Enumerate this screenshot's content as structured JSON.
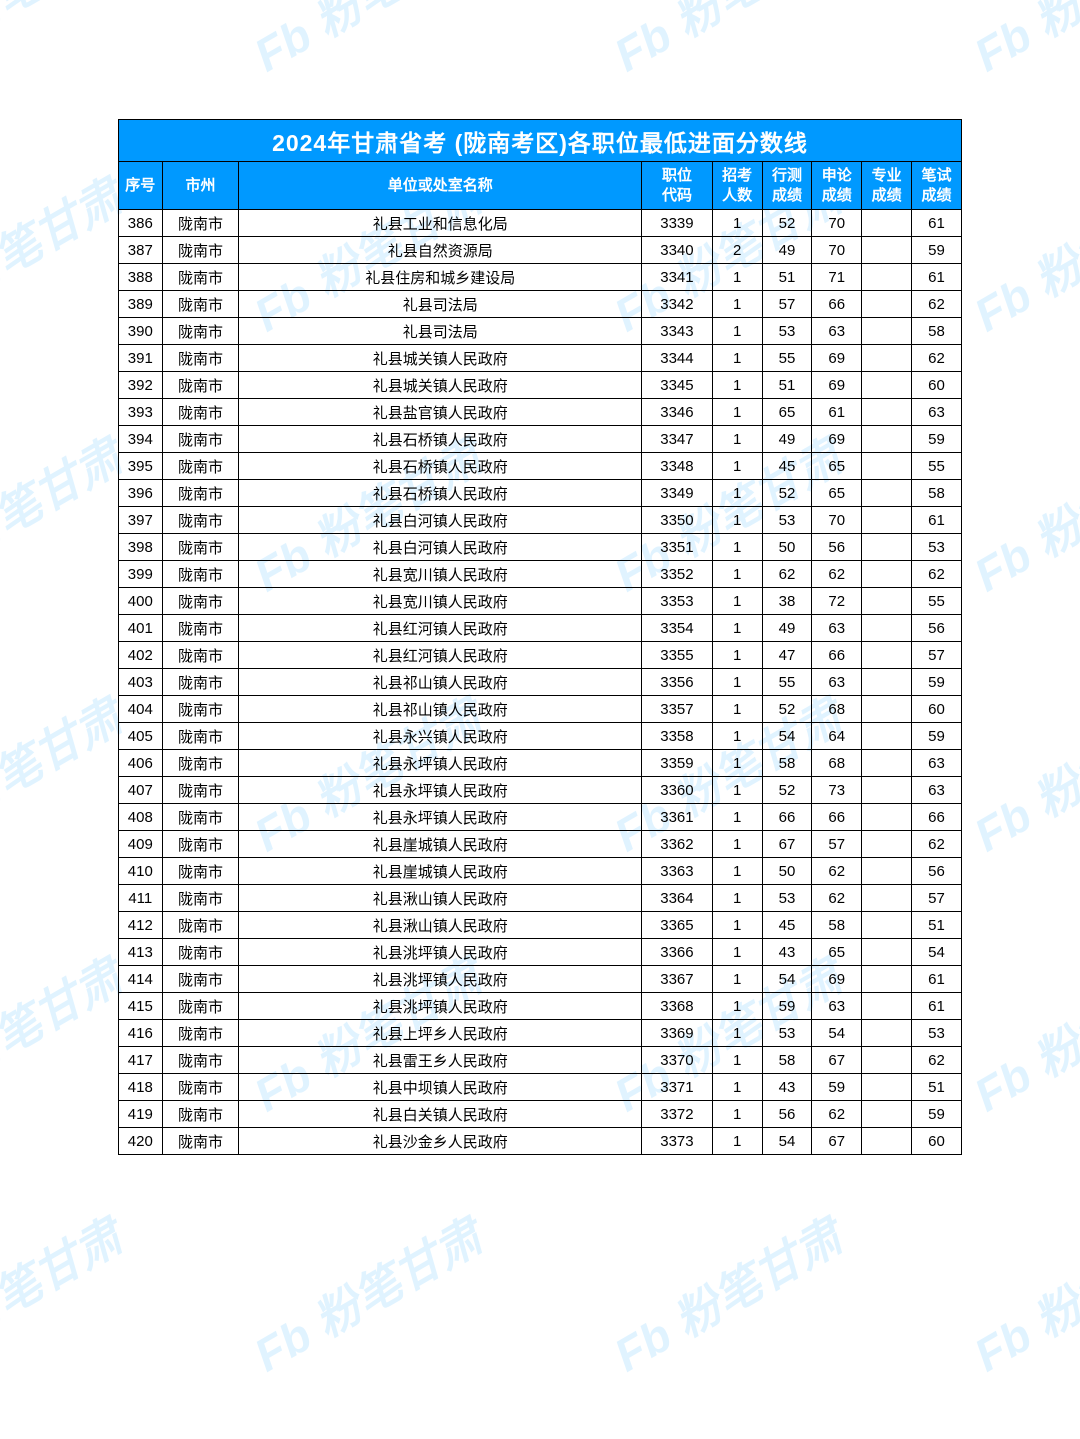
{
  "title": "2024年甘肃省考 (陇南考区)各职位最低进面分数线",
  "watermark_text": "粉笔甘肃",
  "colors": {
    "header_bg": "#0099ff",
    "header_fg": "#ffffff",
    "border": "#000000",
    "body_fg": "#000000",
    "watermark": "rgba(0,153,255,0.12)",
    "page_bg": "#ffffff"
  },
  "columns": [
    {
      "key": "seq",
      "label": "序号"
    },
    {
      "key": "city",
      "label": "市州"
    },
    {
      "key": "unit",
      "label": "单位或处室名称"
    },
    {
      "key": "code",
      "label": "职位\n代码"
    },
    {
      "key": "num",
      "label": "招考\n人数"
    },
    {
      "key": "s1",
      "label": "行测\n成绩"
    },
    {
      "key": "s2",
      "label": "申论\n成绩"
    },
    {
      "key": "s3",
      "label": "专业\n成绩"
    },
    {
      "key": "s4",
      "label": "笔试\n成绩"
    }
  ],
  "rows": [
    {
      "seq": 386,
      "city": "陇南市",
      "unit": "礼县工业和信息化局",
      "code": 3339,
      "num": 1,
      "s1": 52,
      "s2": 70,
      "s3": "",
      "s4": 61
    },
    {
      "seq": 387,
      "city": "陇南市",
      "unit": "礼县自然资源局",
      "code": 3340,
      "num": 2,
      "s1": 49,
      "s2": 70,
      "s3": "",
      "s4": 59
    },
    {
      "seq": 388,
      "city": "陇南市",
      "unit": "礼县住房和城乡建设局",
      "code": 3341,
      "num": 1,
      "s1": 51,
      "s2": 71,
      "s3": "",
      "s4": 61
    },
    {
      "seq": 389,
      "city": "陇南市",
      "unit": "礼县司法局",
      "code": 3342,
      "num": 1,
      "s1": 57,
      "s2": 66,
      "s3": "",
      "s4": 62
    },
    {
      "seq": 390,
      "city": "陇南市",
      "unit": "礼县司法局",
      "code": 3343,
      "num": 1,
      "s1": 53,
      "s2": 63,
      "s3": "",
      "s4": 58
    },
    {
      "seq": 391,
      "city": "陇南市",
      "unit": "礼县城关镇人民政府",
      "code": 3344,
      "num": 1,
      "s1": 55,
      "s2": 69,
      "s3": "",
      "s4": 62
    },
    {
      "seq": 392,
      "city": "陇南市",
      "unit": "礼县城关镇人民政府",
      "code": 3345,
      "num": 1,
      "s1": 51,
      "s2": 69,
      "s3": "",
      "s4": 60
    },
    {
      "seq": 393,
      "city": "陇南市",
      "unit": "礼县盐官镇人民政府",
      "code": 3346,
      "num": 1,
      "s1": 65,
      "s2": 61,
      "s3": "",
      "s4": 63
    },
    {
      "seq": 394,
      "city": "陇南市",
      "unit": "礼县石桥镇人民政府",
      "code": 3347,
      "num": 1,
      "s1": 49,
      "s2": 69,
      "s3": "",
      "s4": 59
    },
    {
      "seq": 395,
      "city": "陇南市",
      "unit": "礼县石桥镇人民政府",
      "code": 3348,
      "num": 1,
      "s1": 45,
      "s2": 65,
      "s3": "",
      "s4": 55
    },
    {
      "seq": 396,
      "city": "陇南市",
      "unit": "礼县石桥镇人民政府",
      "code": 3349,
      "num": 1,
      "s1": 52,
      "s2": 65,
      "s3": "",
      "s4": 58
    },
    {
      "seq": 397,
      "city": "陇南市",
      "unit": "礼县白河镇人民政府",
      "code": 3350,
      "num": 1,
      "s1": 53,
      "s2": 70,
      "s3": "",
      "s4": 61
    },
    {
      "seq": 398,
      "city": "陇南市",
      "unit": "礼县白河镇人民政府",
      "code": 3351,
      "num": 1,
      "s1": 50,
      "s2": 56,
      "s3": "",
      "s4": 53
    },
    {
      "seq": 399,
      "city": "陇南市",
      "unit": "礼县宽川镇人民政府",
      "code": 3352,
      "num": 1,
      "s1": 62,
      "s2": 62,
      "s3": "",
      "s4": 62
    },
    {
      "seq": 400,
      "city": "陇南市",
      "unit": "礼县宽川镇人民政府",
      "code": 3353,
      "num": 1,
      "s1": 38,
      "s2": 72,
      "s3": "",
      "s4": 55
    },
    {
      "seq": 401,
      "city": "陇南市",
      "unit": "礼县红河镇人民政府",
      "code": 3354,
      "num": 1,
      "s1": 49,
      "s2": 63,
      "s3": "",
      "s4": 56
    },
    {
      "seq": 402,
      "city": "陇南市",
      "unit": "礼县红河镇人民政府",
      "code": 3355,
      "num": 1,
      "s1": 47,
      "s2": 66,
      "s3": "",
      "s4": 57
    },
    {
      "seq": 403,
      "city": "陇南市",
      "unit": "礼县祁山镇人民政府",
      "code": 3356,
      "num": 1,
      "s1": 55,
      "s2": 63,
      "s3": "",
      "s4": 59
    },
    {
      "seq": 404,
      "city": "陇南市",
      "unit": "礼县祁山镇人民政府",
      "code": 3357,
      "num": 1,
      "s1": 52,
      "s2": 68,
      "s3": "",
      "s4": 60
    },
    {
      "seq": 405,
      "city": "陇南市",
      "unit": "礼县永兴镇人民政府",
      "code": 3358,
      "num": 1,
      "s1": 54,
      "s2": 64,
      "s3": "",
      "s4": 59
    },
    {
      "seq": 406,
      "city": "陇南市",
      "unit": "礼县永坪镇人民政府",
      "code": 3359,
      "num": 1,
      "s1": 58,
      "s2": 68,
      "s3": "",
      "s4": 63
    },
    {
      "seq": 407,
      "city": "陇南市",
      "unit": "礼县永坪镇人民政府",
      "code": 3360,
      "num": 1,
      "s1": 52,
      "s2": 73,
      "s3": "",
      "s4": 63
    },
    {
      "seq": 408,
      "city": "陇南市",
      "unit": "礼县永坪镇人民政府",
      "code": 3361,
      "num": 1,
      "s1": 66,
      "s2": 66,
      "s3": "",
      "s4": 66
    },
    {
      "seq": 409,
      "city": "陇南市",
      "unit": "礼县崖城镇人民政府",
      "code": 3362,
      "num": 1,
      "s1": 67,
      "s2": 57,
      "s3": "",
      "s4": 62
    },
    {
      "seq": 410,
      "city": "陇南市",
      "unit": "礼县崖城镇人民政府",
      "code": 3363,
      "num": 1,
      "s1": 50,
      "s2": 62,
      "s3": "",
      "s4": 56
    },
    {
      "seq": 411,
      "city": "陇南市",
      "unit": "礼县湫山镇人民政府",
      "code": 3364,
      "num": 1,
      "s1": 53,
      "s2": 62,
      "s3": "",
      "s4": 57
    },
    {
      "seq": 412,
      "city": "陇南市",
      "unit": "礼县湫山镇人民政府",
      "code": 3365,
      "num": 1,
      "s1": 45,
      "s2": 58,
      "s3": "",
      "s4": 51
    },
    {
      "seq": 413,
      "city": "陇南市",
      "unit": "礼县洮坪镇人民政府",
      "code": 3366,
      "num": 1,
      "s1": 43,
      "s2": 65,
      "s3": "",
      "s4": 54
    },
    {
      "seq": 414,
      "city": "陇南市",
      "unit": "礼县洮坪镇人民政府",
      "code": 3367,
      "num": 1,
      "s1": 54,
      "s2": 69,
      "s3": "",
      "s4": 61
    },
    {
      "seq": 415,
      "city": "陇南市",
      "unit": "礼县洮坪镇人民政府",
      "code": 3368,
      "num": 1,
      "s1": 59,
      "s2": 63,
      "s3": "",
      "s4": 61
    },
    {
      "seq": 416,
      "city": "陇南市",
      "unit": "礼县上坪乡人民政府",
      "code": 3369,
      "num": 1,
      "s1": 53,
      "s2": 54,
      "s3": "",
      "s4": 53
    },
    {
      "seq": 417,
      "city": "陇南市",
      "unit": "礼县雷王乡人民政府",
      "code": 3370,
      "num": 1,
      "s1": 58,
      "s2": 67,
      "s3": "",
      "s4": 62
    },
    {
      "seq": 418,
      "city": "陇南市",
      "unit": "礼县中坝镇人民政府",
      "code": 3371,
      "num": 1,
      "s1": 43,
      "s2": 59,
      "s3": "",
      "s4": 51
    },
    {
      "seq": 419,
      "city": "陇南市",
      "unit": "礼县白关镇人民政府",
      "code": 3372,
      "num": 1,
      "s1": 56,
      "s2": 62,
      "s3": "",
      "s4": 59
    },
    {
      "seq": 420,
      "city": "陇南市",
      "unit": "礼县沙金乡人民政府",
      "code": 3373,
      "num": 1,
      "s1": 54,
      "s2": 67,
      "s3": "",
      "s4": 60
    }
  ]
}
